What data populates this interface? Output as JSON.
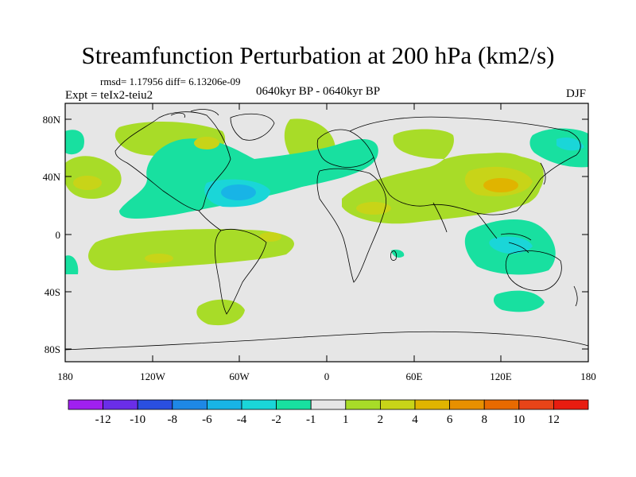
{
  "title": "Streamfunction Perturbation at 200 hPa (km2/s)",
  "stats": "rmsd= 1.17956 diff= 6.13206e-09",
  "expt": "Expt = teIx2-teiu2",
  "period": "0640kyr BP - 0640kyr BP",
  "season": "DJF",
  "y_ticks": [
    "80N",
    "40N",
    "0",
    "40S",
    "80S"
  ],
  "x_ticks": [
    "180",
    "120W",
    "60W",
    "0",
    "60E",
    "120E",
    "180"
  ],
  "colorbar": {
    "labels": [
      "-12",
      "-10",
      "-8",
      "-6",
      "-4",
      "-2",
      "-1",
      "1",
      "2",
      "4",
      "6",
      "8",
      "10",
      "12"
    ],
    "colors": [
      "#a020f0",
      "#6a2ee8",
      "#2a4fe0",
      "#1e88e6",
      "#18b4e6",
      "#1ad6d8",
      "#18e0a0",
      "#e6e6e6",
      "#a8dc28",
      "#c8d418",
      "#e0b400",
      "#e89000",
      "#e86a00",
      "#e84418",
      "#e81c10"
    ]
  },
  "map_style": {
    "background": "#e6e6e6",
    "coastline": "#000000"
  }
}
